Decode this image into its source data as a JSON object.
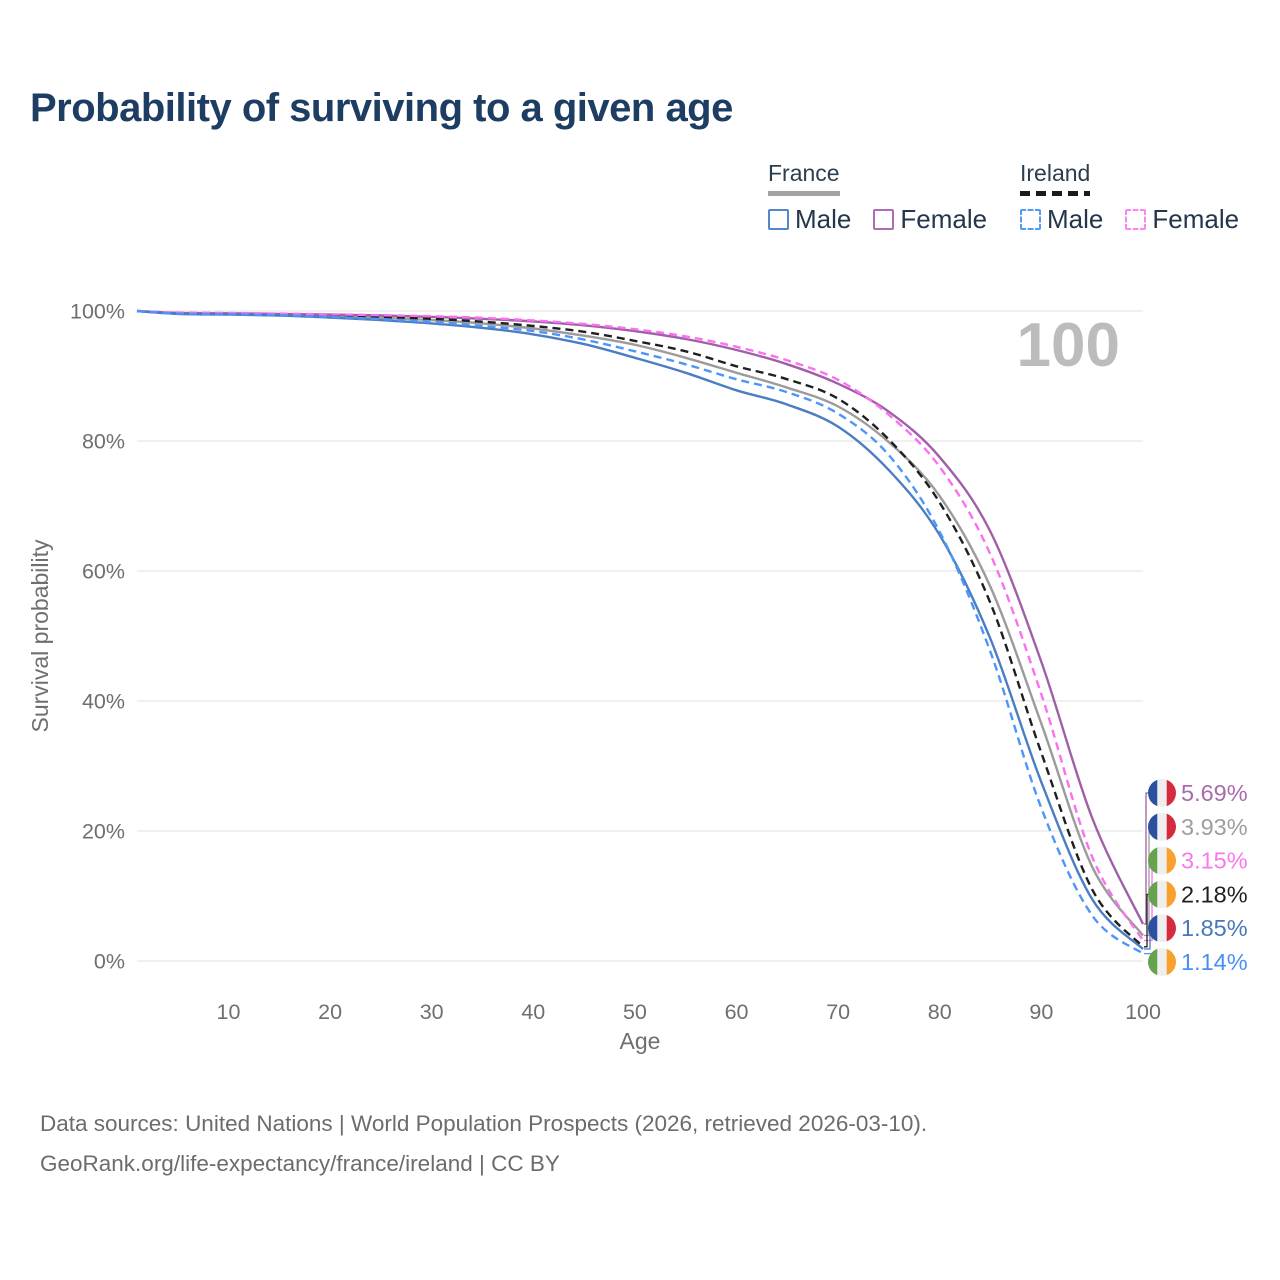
{
  "title": "Probability of surviving to a given age",
  "watermark_age": "100",
  "legend": {
    "groups": [
      {
        "name": "France",
        "line_style": "solid",
        "line_color": "#a3a3a3",
        "items": [
          {
            "label": "Male",
            "swatch_color": "#5585cb"
          },
          {
            "label": "Female",
            "swatch_color": "#b06cb3"
          }
        ]
      },
      {
        "name": "Ireland",
        "line_style": "dashed",
        "line_color": "#1a1a1a",
        "items": [
          {
            "label": "Male",
            "swatch_color": "#549af7"
          },
          {
            "label": "Female",
            "swatch_color": "#fb86f1"
          }
        ]
      }
    ]
  },
  "chart_data": {
    "type": "line",
    "title": "Probability of surviving to a given age",
    "xlabel": "Age",
    "ylabel": "Survival probability",
    "xlim": [
      1,
      100
    ],
    "ylim": [
      0,
      100
    ],
    "grid": "horizontal",
    "legend_position": "top-right",
    "x_ticks": [
      10,
      20,
      30,
      40,
      50,
      60,
      70,
      80,
      90,
      100
    ],
    "y_ticks": [
      {
        "value": 0,
        "label": "0%"
      },
      {
        "value": 20,
        "label": "20%"
      },
      {
        "value": 40,
        "label": "40%"
      },
      {
        "value": 60,
        "label": "60%"
      },
      {
        "value": 80,
        "label": "80%"
      },
      {
        "value": 100,
        "label": "100%"
      }
    ],
    "x": [
      1,
      5,
      10,
      15,
      20,
      25,
      30,
      35,
      40,
      45,
      50,
      55,
      60,
      65,
      70,
      75,
      80,
      85,
      90,
      95,
      100
    ],
    "series": [
      {
        "id": "france-female",
        "country": "France",
        "sex": "Female",
        "line_style": "solid",
        "color": "#a05fa8",
        "flag": "france",
        "end_label": "5.69%",
        "end_label_color": "#a96bab",
        "values": [
          100,
          99.7,
          99.65,
          99.55,
          99.45,
          99.3,
          99.1,
          98.8,
          98.4,
          97.8,
          96.9,
          95.7,
          94.0,
          91.8,
          88.8,
          84.5,
          77.5,
          66.0,
          46.0,
          22.0,
          5.69
        ]
      },
      {
        "id": "france-both",
        "country": "France",
        "sex": "Both",
        "line_style": "solid",
        "color": "#9b9b9b",
        "flag": "france",
        "end_label": "3.93%",
        "end_label_color": "#9e9e9e",
        "values": [
          100,
          99.6,
          99.55,
          99.4,
          99.2,
          98.95,
          98.6,
          98.1,
          97.3,
          96.2,
          94.8,
          92.8,
          90.5,
          88.2,
          85.3,
          79.8,
          71.5,
          57.5,
          36.5,
          14.5,
          3.93
        ]
      },
      {
        "id": "ireland-female",
        "country": "Ireland",
        "sex": "Female",
        "line_style": "dashed",
        "color": "#fb70ef",
        "flag": "ireland",
        "end_label": "3.15%",
        "end_label_color": "#fb77ee",
        "values": [
          100,
          99.75,
          99.7,
          99.6,
          99.5,
          99.35,
          99.2,
          98.95,
          98.55,
          98.0,
          97.2,
          96.1,
          94.5,
          92.4,
          89.4,
          84.0,
          76.0,
          62.5,
          41.0,
          16.0,
          3.15
        ]
      },
      {
        "id": "ireland-both",
        "country": "Ireland",
        "sex": "Both",
        "line_style": "dashed",
        "color": "#1f1f1f",
        "flag": "ireland",
        "end_label": "2.18%",
        "end_label_color": "#1f1f1f",
        "values": [
          100,
          99.65,
          99.6,
          99.5,
          99.35,
          99.1,
          98.8,
          98.35,
          97.7,
          96.8,
          95.4,
          93.8,
          91.5,
          89.5,
          86.5,
          80.2,
          70.5,
          55.0,
          32.0,
          11.0,
          2.18
        ]
      },
      {
        "id": "france-male",
        "country": "France",
        "sex": "Male",
        "line_style": "solid",
        "color": "#4a7dc3",
        "flag": "france",
        "end_label": "1.85%",
        "end_label_color": "#4878bb",
        "values": [
          100,
          99.55,
          99.45,
          99.3,
          99.0,
          98.6,
          98.1,
          97.4,
          96.4,
          94.9,
          92.8,
          90.5,
          87.8,
          85.6,
          82.2,
          75.5,
          65.5,
          49.5,
          27.5,
          9.5,
          1.85
        ]
      },
      {
        "id": "ireland-male",
        "country": "Ireland",
        "sex": "Male",
        "line_style": "dashed",
        "color": "#4e95fa",
        "flag": "ireland",
        "end_label": "1.14%",
        "end_label_color": "#4a90f2",
        "values": [
          100,
          99.6,
          99.5,
          99.35,
          99.1,
          98.75,
          98.3,
          97.7,
          96.9,
          95.6,
          93.8,
          91.8,
          89.5,
          87.5,
          84.2,
          77.8,
          66.0,
          47.5,
          23.5,
          7.0,
          1.14
        ]
      }
    ]
  },
  "flags": {
    "france": [
      "#2b509f",
      "#efefef",
      "#d52b3f"
    ],
    "ireland": [
      "#67a34e",
      "#efefef",
      "#f8a12c"
    ]
  },
  "footer": {
    "line1": "Data sources: United Nations | World Population Prospects (2026, retrieved 2026-03-10).",
    "line2": "GeoRank.org/life-expectancy/france/ireland | CC BY"
  }
}
